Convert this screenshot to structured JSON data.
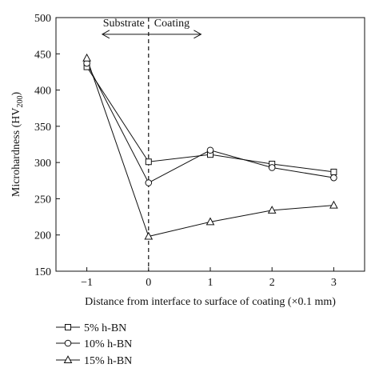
{
  "chart_data": {
    "type": "line",
    "title": "",
    "xlabel": "Distance from interface to surface of coating (×0.1 mm)",
    "ylabel": {
      "main": "Microhardness (HV",
      "sub": "200",
      "close": ")"
    },
    "x": [
      -1,
      0,
      1,
      2,
      3
    ],
    "xlim": [
      -1.5,
      3.5
    ],
    "ylim": [
      150,
      500
    ],
    "x_ticks": [
      -1,
      0,
      1,
      2,
      3
    ],
    "x_tick_labels": [
      "−1",
      "0",
      "1",
      "2",
      "3"
    ],
    "y_ticks": [
      150,
      200,
      250,
      300,
      350,
      400,
      450,
      500
    ],
    "y_tick_labels": [
      "150",
      "200",
      "250",
      "300",
      "350",
      "400",
      "450",
      "500"
    ],
    "grid": false,
    "legend_position": "below-left",
    "series": [
      {
        "name": "5% h-BN",
        "marker": "square",
        "values": [
          432,
          301,
          311,
          298,
          287
        ]
      },
      {
        "name": "10% h-BN",
        "marker": "circle",
        "values": [
          437,
          272,
          317,
          293,
          279
        ]
      },
      {
        "name": "15% h-BN",
        "marker": "triangle",
        "values": [
          444,
          198,
          218,
          234,
          241
        ]
      }
    ],
    "annotations": {
      "substrate": "Substrate",
      "coating": "Coating",
      "interface_x": 0,
      "arrow_left_to_x": -0.75,
      "arrow_right_to_x": 0.85,
      "arrow_y": 477
    },
    "colors": {
      "line": "#111111",
      "marker_fill": "#ffffff"
    }
  }
}
